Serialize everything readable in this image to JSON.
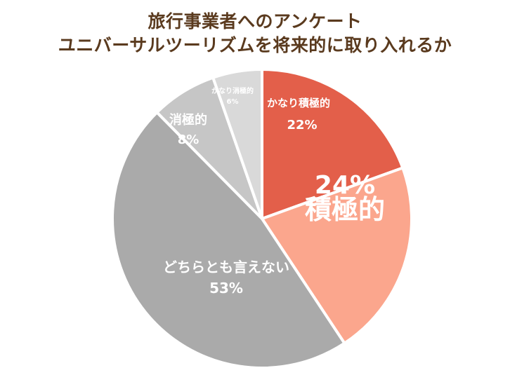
{
  "chart_data": {
    "type": "pie",
    "title": "旅行事業者へのアンケート",
    "subtitle": "ユニバーサルツーリズムを将来的に取り入れるか",
    "slices": [
      {
        "label": "かなり積極的",
        "value": 22,
        "value_label": "22%",
        "color": "#e35f4a"
      },
      {
        "label": "積極的",
        "value": 24,
        "value_label": "24%",
        "color": "#fba68d"
      },
      {
        "label": "どちらとも言えない",
        "value": 53,
        "value_label": "53%",
        "color": "#aaaaaa"
      },
      {
        "label": "消極的",
        "value": 8,
        "value_label": "8%",
        "color": "#c6c6c6"
      },
      {
        "label": "かなり消極的",
        "value": 6,
        "value_label": "6%",
        "color": "#d9d9d9"
      }
    ],
    "legend": "none"
  }
}
